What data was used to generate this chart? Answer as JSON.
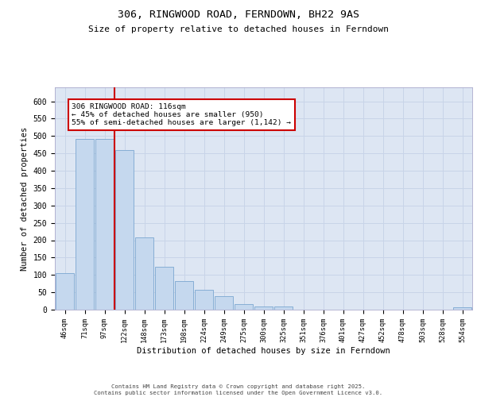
{
  "title": "306, RINGWOOD ROAD, FERNDOWN, BH22 9AS",
  "subtitle": "Size of property relative to detached houses in Ferndown",
  "xlabel": "Distribution of detached houses by size in Ferndown",
  "ylabel": "Number of detached properties",
  "categories": [
    "46sqm",
    "71sqm",
    "97sqm",
    "122sqm",
    "148sqm",
    "173sqm",
    "198sqm",
    "224sqm",
    "249sqm",
    "275sqm",
    "300sqm",
    "325sqm",
    "351sqm",
    "376sqm",
    "401sqm",
    "427sqm",
    "452sqm",
    "478sqm",
    "503sqm",
    "528sqm",
    "554sqm"
  ],
  "values": [
    106,
    492,
    492,
    460,
    207,
    124,
    82,
    57,
    38,
    15,
    10,
    10,
    0,
    0,
    0,
    0,
    0,
    0,
    0,
    0,
    7
  ],
  "bar_color": "#c5d8ee",
  "bar_edge_color": "#7ba7d0",
  "vline_x": 2.5,
  "vline_color": "#cc0000",
  "annotation_text": "306 RINGWOOD ROAD: 116sqm\n← 45% of detached houses are smaller (950)\n55% of semi-detached houses are larger (1,142) →",
  "annotation_box_color": "#ffffff",
  "annotation_box_edge": "#cc0000",
  "grid_color": "#c8d4e8",
  "background_color": "#dde6f3",
  "footer": "Contains HM Land Registry data © Crown copyright and database right 2025.\nContains public sector information licensed under the Open Government Licence v3.0.",
  "ylim": [
    0,
    640
  ],
  "yticks": [
    0,
    50,
    100,
    150,
    200,
    250,
    300,
    350,
    400,
    450,
    500,
    550,
    600
  ]
}
